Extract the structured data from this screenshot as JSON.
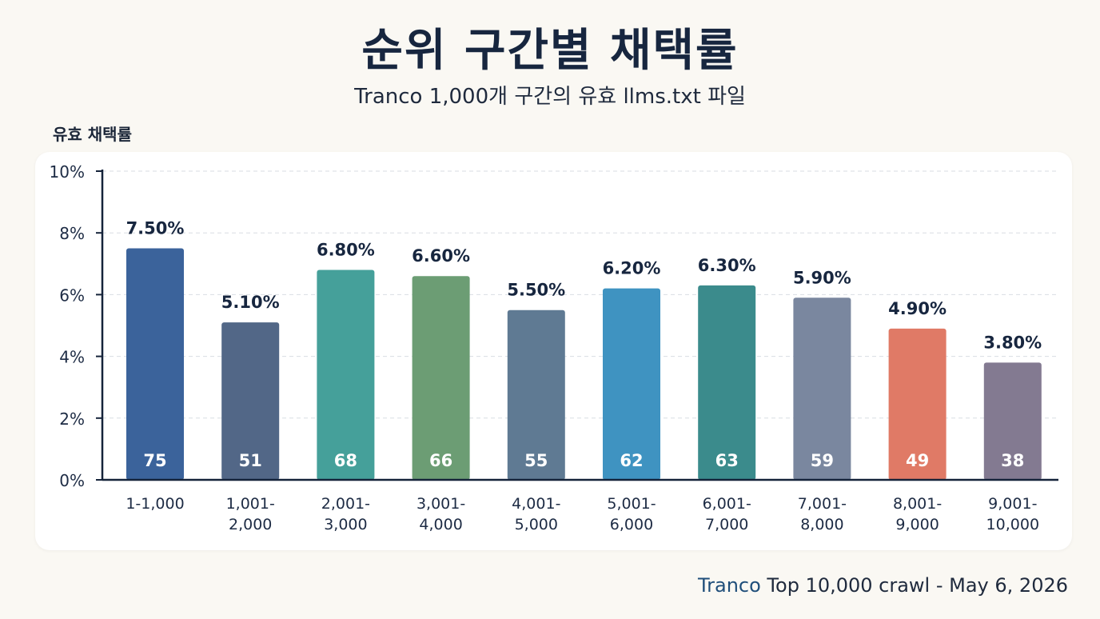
{
  "header": {
    "title": "순위 구간별 채택률",
    "subtitle": "Tranco 1,000개 구간의 유효 llms.txt 파일"
  },
  "footer": {
    "brand": "Tranco",
    "text": " Top 10,000 crawl - May 6, 2026"
  },
  "chart_data": {
    "type": "bar",
    "title": "순위 구간별 채택률",
    "subtitle": "Tranco 1,000개 구간의 유효 llms.txt 파일",
    "ylabel": "유효 채택률",
    "xlabel": "",
    "ylim": [
      0,
      10
    ],
    "yticks": [
      "0%",
      "2%",
      "4%",
      "6%",
      "8%",
      "10%"
    ],
    "ytick_values": [
      0,
      2,
      4,
      6,
      8,
      10
    ],
    "grid": true,
    "categories": [
      [
        "1-1,000"
      ],
      [
        "1,001-",
        "2,000"
      ],
      [
        "2,001-",
        "3,000"
      ],
      [
        "3,001-",
        "4,000"
      ],
      [
        "4,001-",
        "5,000"
      ],
      [
        "5,001-",
        "6,000"
      ],
      [
        "6,001-",
        "7,000"
      ],
      [
        "7,001-",
        "8,000"
      ],
      [
        "8,001-",
        "9,000"
      ],
      [
        "9,001-",
        "10,000"
      ]
    ],
    "values": [
      7.5,
      5.1,
      6.8,
      6.6,
      5.5,
      6.2,
      6.3,
      5.9,
      4.9,
      3.8
    ],
    "value_labels": [
      "7.50%",
      "5.10%",
      "6.80%",
      "6.60%",
      "5.50%",
      "6.20%",
      "6.30%",
      "5.90%",
      "4.90%",
      "3.80%"
    ],
    "counts": [
      "75",
      "51",
      "68",
      "66",
      "55",
      "62",
      "63",
      "59",
      "49",
      "38"
    ],
    "colors": [
      "#3b639b",
      "#526787",
      "#45a09a",
      "#6c9d74",
      "#5f7a93",
      "#3f93c1",
      "#3b8b8c",
      "#7a879f",
      "#e07a66",
      "#837a91"
    ]
  }
}
